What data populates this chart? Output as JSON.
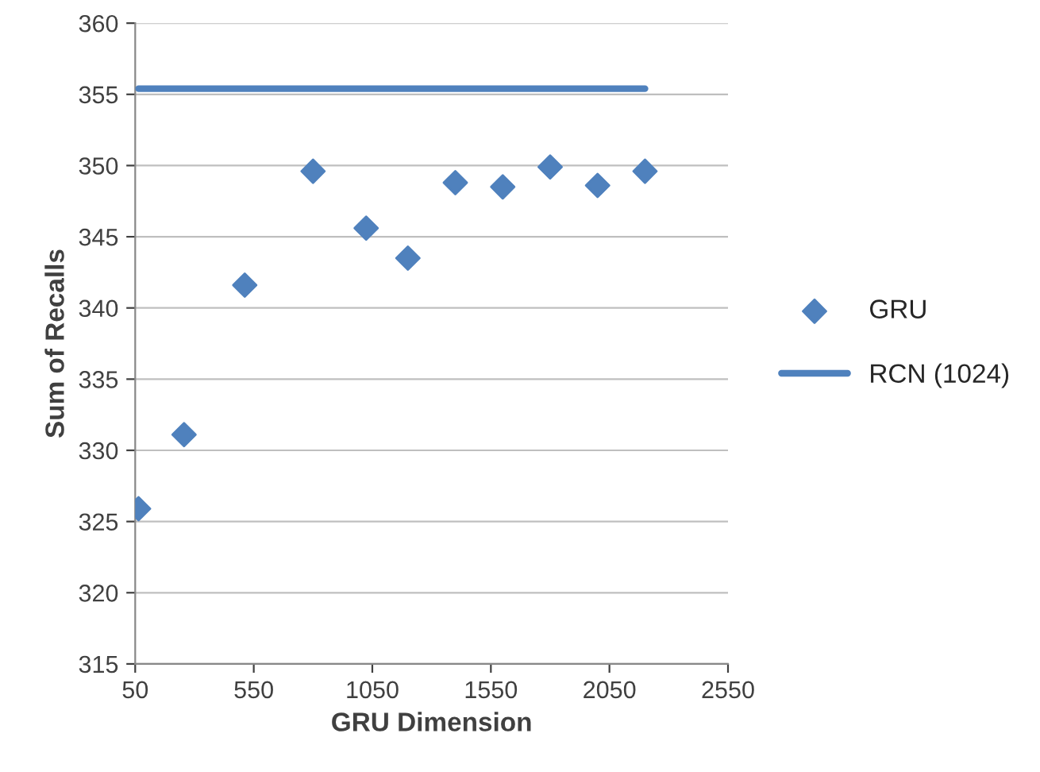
{
  "chart_data": {
    "type": "scatter",
    "xlabel": "GRU Dimension",
    "ylabel": "Sum of Recalls",
    "series": [
      {
        "name": "GRU",
        "color": "#4f81bd",
        "marker": "diamond",
        "x": [
          64,
          256,
          512,
          800,
          1024,
          1200,
          1400,
          1600,
          1800,
          2000,
          2200
        ],
        "values": [
          325.9,
          331.1,
          341.6,
          349.6,
          345.6,
          343.5,
          348.8,
          348.5,
          349.9,
          348.6,
          349.6
        ]
      },
      {
        "name": "RCN (1024)",
        "type": "line",
        "color": "#4f81bd",
        "marker": "none",
        "x": [
          64,
          2200
        ],
        "values": [
          355.4,
          355.4
        ]
      }
    ],
    "xlim": [
      50,
      2550
    ],
    "xticks": [
      50,
      550,
      1050,
      1550,
      2050,
      2550
    ],
    "ylim": [
      315,
      360
    ],
    "yticks": [
      315,
      320,
      325,
      330,
      335,
      340,
      345,
      350,
      355,
      360
    ],
    "grid": "y",
    "legend": "right"
  }
}
